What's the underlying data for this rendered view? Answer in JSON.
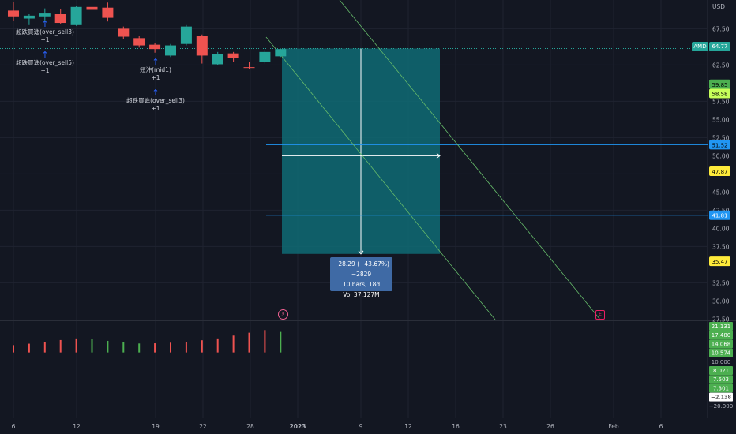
{
  "chart_data": [
    {
      "type": "candlestick",
      "symbol": "AMD",
      "currency": "USD",
      "last_price": "64.77",
      "ylim": [
        27.5,
        70.5
      ],
      "y_ticks": [
        "67.50",
        "62.50",
        "57.50",
        "55.00",
        "52.50",
        "50.00",
        "45.00",
        "42.50",
        "40.00",
        "37.50",
        "32.50",
        "30.00",
        "27.50"
      ],
      "x_ticks": [
        "6",
        "12",
        "19",
        "22",
        "28",
        "2023",
        "9",
        "12",
        "16",
        "23",
        "26",
        "Feb",
        "6"
      ],
      "candles": [
        {
          "o": 70.0,
          "h": 71.2,
          "l": 68.6,
          "c": 69.2
        },
        {
          "o": 68.9,
          "h": 69.5,
          "l": 68.0,
          "c": 69.3
        },
        {
          "o": 69.2,
          "h": 70.3,
          "l": 68.4,
          "c": 69.6
        },
        {
          "o": 69.5,
          "h": 70.2,
          "l": 68.1,
          "c": 68.3
        },
        {
          "o": 68.0,
          "h": 70.6,
          "l": 67.9,
          "c": 70.5
        },
        {
          "o": 70.5,
          "h": 71.0,
          "l": 69.6,
          "c": 70.1
        },
        {
          "o": 70.4,
          "h": 71.1,
          "l": 68.5,
          "c": 69.0
        },
        {
          "o": 67.5,
          "h": 67.8,
          "l": 66.1,
          "c": 66.4
        },
        {
          "o": 66.2,
          "h": 66.5,
          "l": 64.9,
          "c": 65.2
        },
        {
          "o": 65.3,
          "h": 65.5,
          "l": 64.2,
          "c": 64.7
        },
        {
          "o": 63.8,
          "h": 65.4,
          "l": 63.6,
          "c": 65.2
        },
        {
          "o": 65.4,
          "h": 68.0,
          "l": 65.2,
          "c": 67.8
        },
        {
          "o": 66.5,
          "h": 66.7,
          "l": 62.7,
          "c": 63.8
        },
        {
          "o": 62.6,
          "h": 64.3,
          "l": 62.5,
          "c": 64.0
        },
        {
          "o": 64.1,
          "h": 64.3,
          "l": 62.9,
          "c": 63.5
        },
        {
          "o": 62.2,
          "h": 62.9,
          "l": 61.9,
          "c": 62.1
        },
        {
          "o": 62.9,
          "h": 64.6,
          "l": 62.7,
          "c": 64.3
        },
        {
          "o": 63.7,
          "h": 64.8,
          "l": 63.6,
          "c": 64.7
        }
      ],
      "levels": [
        {
          "label": "59.85",
          "value": 59.85,
          "bg": "#4caf50",
          "fg": "#000000"
        },
        {
          "label": "58.58",
          "value": 58.58,
          "bg": "#c6ff5a",
          "fg": "#000000"
        },
        {
          "label": "51.52",
          "value": 51.52,
          "bg": "#2196f3",
          "fg": "#000000"
        },
        {
          "label": "47.87",
          "value": 47.87,
          "bg": "#ffeb3b",
          "fg": "#000000"
        },
        {
          "label": "41.81",
          "value": 41.81,
          "bg": "#2196f3",
          "fg": "#ffffff"
        },
        {
          "label": "35.47",
          "value": 35.47,
          "bg": "#ffeb3b",
          "fg": "#000000"
        }
      ],
      "horizontal_lines": [
        51.52,
        41.81
      ],
      "measure": {
        "line1": "−28.29 (−43.67%) −2829",
        "line2": "10 bars, 18d",
        "line3": "Vol 37.127M"
      }
    },
    {
      "type": "histogram",
      "ylim": [
        -20.0,
        22.0
      ],
      "y_ticks": [
        "21.131",
        "17.480",
        "14.068",
        "10.574",
        "10.000",
        "8.021",
        "7.503",
        "7.301",
        "−2.138",
        "−20.000"
      ],
      "values": [
        10.9,
        11.6,
        12.4,
        13.4,
        14.2,
        14.0,
        13.0,
        12.4,
        11.7,
        11.8,
        12.1,
        12.6,
        13.3,
        14.2,
        15.6,
        17.0,
        18.3,
        17.4
      ],
      "colors": [
        "red",
        "red",
        "red",
        "red",
        "red",
        "green",
        "green",
        "green",
        "green",
        "red",
        "red",
        "red",
        "red",
        "red",
        "red",
        "red",
        "red",
        "green"
      ]
    }
  ],
  "annotations": [
    {
      "text": "超跌買進(over_sell3)",
      "sub": "+1"
    },
    {
      "text": "超跌買進(over_sell5)",
      "sub": "+1"
    },
    {
      "text": "短沖(mid1)",
      "sub": "+1"
    },
    {
      "text": "超跌買進(over_sell3)",
      "sub": "+1"
    }
  ],
  "colors": {
    "up": "#26a69a",
    "down": "#ef5350",
    "bg": "#131722",
    "grid": "#1f2330",
    "axis_text": "#b2b5be",
    "box": "#0f6b74"
  },
  "icons": {
    "flash": "flash-icon",
    "earnings": "earnings-icon"
  },
  "earnings_label": "E"
}
